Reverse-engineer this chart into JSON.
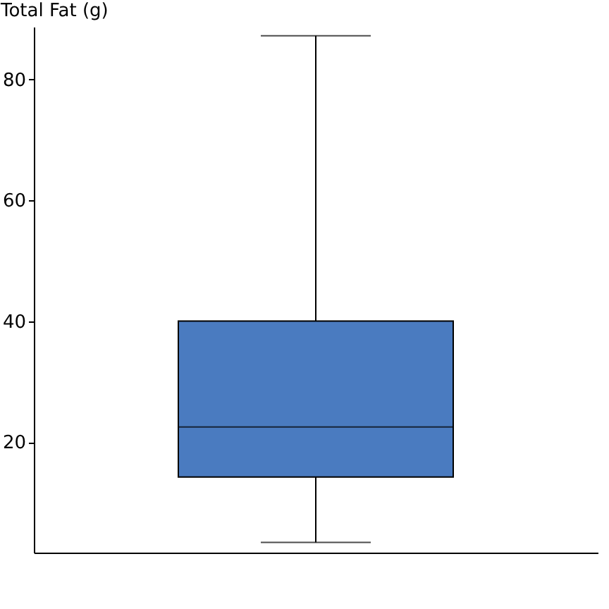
{
  "chart_data": {
    "type": "box",
    "ylabel": "Total Fat (g)",
    "categories": [
      null
    ],
    "boxes": [
      {
        "low": 3.4,
        "q1": 14.2,
        "median": 22.5,
        "q3": 40,
        "high": 87.2
      }
    ],
    "color": "#4a7bc0",
    "ylim": [
      1.7,
      88.7
    ],
    "yticks": [
      20,
      40,
      60,
      80
    ],
    "tick_labels": "y"
  }
}
